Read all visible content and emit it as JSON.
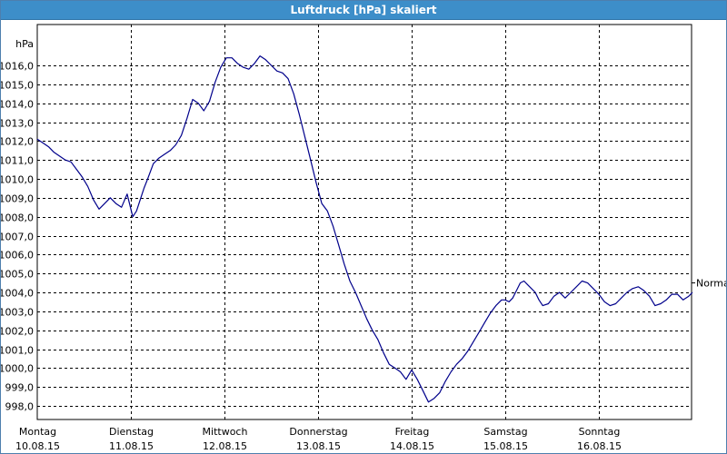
{
  "window": {
    "title": "Luftdruck [hPa] skaliert"
  },
  "chart_data": {
    "type": "line",
    "title": "Luftdruck [hPa] skaliert",
    "ylabel": "hPa",
    "ylim": [
      997.5,
      1016.8
    ],
    "yticks": [
      "998,0",
      "999,0",
      "1000,0",
      "1001,0",
      "1002,0",
      "1003,0",
      "1004,0",
      "1005,0",
      "1006,0",
      "1007,0",
      "1008,0",
      "1009,0",
      "1010,0",
      "1011,0",
      "1012,0",
      "1013,0",
      "1014,0",
      "1015,0",
      "1016,0"
    ],
    "ytick_values": [
      998,
      999,
      1000,
      1001,
      1002,
      1003,
      1004,
      1005,
      1006,
      1007,
      1008,
      1009,
      1010,
      1011,
      1012,
      1013,
      1014,
      1015,
      1016
    ],
    "xlim": [
      0,
      7
    ],
    "xticks": [
      {
        "day": "Montag",
        "date": "10.08.15"
      },
      {
        "day": "Dienstag",
        "date": "11.08.15"
      },
      {
        "day": "Mittwoch",
        "date": "12.08.15"
      },
      {
        "day": "Donnerstag",
        "date": "13.08.15"
      },
      {
        "day": "Freitag",
        "date": "14.08.15"
      },
      {
        "day": "Samstag",
        "date": "15.08.15"
      },
      {
        "day": "Sonntag",
        "date": "16.08.15"
      }
    ],
    "grid": true,
    "reference_line": {
      "label": "Normal",
      "value": 1004.5
    },
    "series": [
      {
        "color": "#00008b",
        "x": [
          0,
          0.06,
          0.12,
          0.18,
          0.24,
          0.3,
          0.36,
          0.42,
          0.48,
          0.54,
          0.6,
          0.66,
          0.72,
          0.78,
          0.84,
          0.9,
          0.96,
          1.02,
          1.06,
          1.1,
          1.14,
          1.18,
          1.24,
          1.3,
          1.36,
          1.42,
          1.48,
          1.54,
          1.6,
          1.66,
          1.72,
          1.78,
          1.84,
          1.9,
          1.96,
          2.02,
          2.08,
          2.14,
          2.2,
          2.26,
          2.32,
          2.38,
          2.44,
          2.5,
          2.56,
          2.62,
          2.68,
          2.74,
          2.8,
          2.86,
          2.92,
          2.98,
          3.04,
          3.1,
          3.16,
          3.22,
          3.28,
          3.34,
          3.4,
          3.46,
          3.52,
          3.58,
          3.64,
          3.7,
          3.76,
          3.82,
          3.88,
          3.94,
          4.0,
          4.06,
          4.12,
          4.18,
          4.24,
          4.3,
          4.36,
          4.42,
          4.48,
          4.54,
          4.6,
          4.66,
          4.72,
          4.78,
          4.84,
          4.9,
          4.96,
          5.0,
          5.04,
          5.08,
          5.12,
          5.16,
          5.2,
          5.24,
          5.28,
          5.32,
          5.36,
          5.4,
          5.46,
          5.52,
          5.58,
          5.64,
          5.7,
          5.76,
          5.82,
          5.88,
          5.94,
          6.0,
          6.06,
          6.12,
          6.18,
          6.24,
          6.3,
          6.36,
          6.42,
          6.48,
          6.54,
          6.6,
          6.66,
          6.72,
          6.78,
          6.84,
          6.9,
          6.96,
          7.0
        ],
        "y": [
          1012.1,
          1011.9,
          1011.7,
          1011.4,
          1011.2,
          1011.0,
          1010.9,
          1010.5,
          1010.1,
          1009.6,
          1008.9,
          1008.4,
          1008.7,
          1009.0,
          1008.7,
          1008.5,
          1009.2,
          1008.0,
          1008.3,
          1008.9,
          1009.5,
          1010.0,
          1010.8,
          1011.1,
          1011.3,
          1011.5,
          1011.8,
          1012.3,
          1013.2,
          1014.2,
          1014.0,
          1013.6,
          1014.1,
          1015.1,
          1015.9,
          1016.4,
          1016.4,
          1016.1,
          1015.9,
          1015.8,
          1016.1,
          1016.5,
          1016.3,
          1016.0,
          1015.7,
          1015.6,
          1015.3,
          1014.5,
          1013.4,
          1012.2,
          1011.0,
          1009.8,
          1008.7,
          1008.3,
          1007.5,
          1006.5,
          1005.5,
          1004.6,
          1004.0,
          1003.3,
          1002.6,
          1002.0,
          1001.5,
          1000.8,
          1000.2,
          1000.0,
          999.8,
          999.4,
          999.9,
          999.4,
          998.8,
          998.2,
          998.4,
          998.7,
          999.3,
          999.8,
          1000.2,
          1000.5,
          1000.9,
          1001.4,
          1001.9,
          1002.4,
          1002.9,
          1003.3,
          1003.6,
          1003.6,
          1003.5,
          1003.7,
          1004.1,
          1004.5,
          1004.6,
          1004.4,
          1004.2,
          1004.0,
          1003.6,
          1003.3,
          1003.4,
          1003.8,
          1004.0,
          1003.7,
          1004.0,
          1004.3,
          1004.6,
          1004.5,
          1004.2,
          1003.9,
          1003.5,
          1003.3,
          1003.4,
          1003.7,
          1004.0,
          1004.2,
          1004.3,
          1004.1,
          1003.8,
          1003.3,
          1003.4,
          1003.6,
          1003.9,
          1003.9,
          1003.6,
          1003.8,
          1004.0
        ]
      }
    ]
  }
}
